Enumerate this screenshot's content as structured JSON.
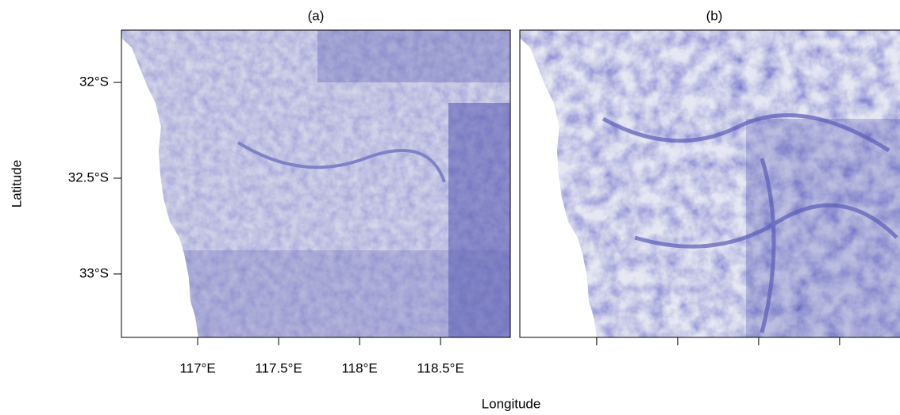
{
  "chart_data": {
    "type": "map",
    "xlabel": "Longitude",
    "ylabel": "Latitude",
    "ylim": [
      -33.331,
      -31.727
    ],
    "xticks": [
      {
        "value": 117,
        "label": "117°E"
      },
      {
        "value": 117.5,
        "label": "117.5°E"
      },
      {
        "value": 118,
        "label": "118°E"
      },
      {
        "value": 118.5,
        "label": "118.5°E"
      }
    ],
    "yticks": [
      {
        "value": -32,
        "label": "32°S"
      },
      {
        "value": -32.5,
        "label": "32.5°S"
      },
      {
        "value": -33,
        "label": "33°S"
      }
    ],
    "panels": [
      {
        "title": "(a)",
        "xlim": [
          116.529,
          118.931
        ]
      },
      {
        "title": "(b)",
        "xlim": [
          116.525,
          118.873
        ]
      }
    ]
  }
}
